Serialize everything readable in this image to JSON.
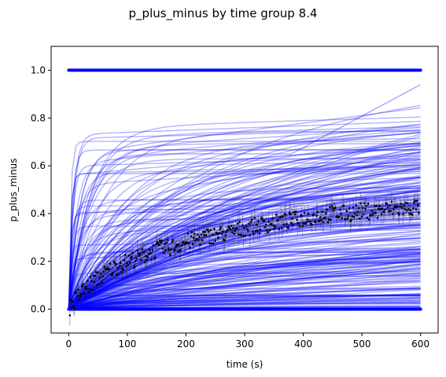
{
  "chart_data": {
    "type": "line",
    "title": "p_plus_minus by time group 8.4",
    "xlabel": "time (s)",
    "ylabel": "p_plus_minus",
    "xlim": [
      -30,
      630
    ],
    "ylim": [
      -0.1,
      1.1
    ],
    "xticks": [
      0,
      100,
      200,
      300,
      400,
      500,
      600
    ],
    "yticks": [
      0.0,
      0.2,
      0.4,
      0.6,
      0.8,
      1.0
    ],
    "ytick_labels": [
      "0.0",
      "0.2",
      "0.4",
      "0.6",
      "0.8",
      "1.0"
    ],
    "grid": false,
    "legend": "none",
    "colors": {
      "fit_curves": "#0000ff",
      "data_points": "#000000",
      "axes": "#000000"
    },
    "fit_curves": {
      "description_count": 260,
      "x_range": [
        0,
        600
      ],
      "plateau_range": [
        0.0,
        0.94
      ],
      "opacity": 0.3
    },
    "boundary_series": [
      {
        "y": 1.0,
        "x_range": [
          0,
          600
        ]
      },
      {
        "y": 0.0,
        "x_range": [
          0,
          600
        ]
      }
    ],
    "mean_series": {
      "x": [
        0,
        25,
        50,
        75,
        100,
        125,
        150,
        175,
        200,
        225,
        250,
        275,
        300,
        325,
        350,
        375,
        400,
        425,
        450,
        475,
        500,
        525,
        550,
        575,
        600
      ],
      "y": [
        0.0,
        0.08,
        0.13,
        0.17,
        0.2,
        0.22,
        0.25,
        0.26,
        0.28,
        0.3,
        0.31,
        0.32,
        0.34,
        0.35,
        0.36,
        0.37,
        0.38,
        0.39,
        0.4,
        0.4,
        0.41,
        0.41,
        0.42,
        0.42,
        0.43
      ]
    }
  }
}
